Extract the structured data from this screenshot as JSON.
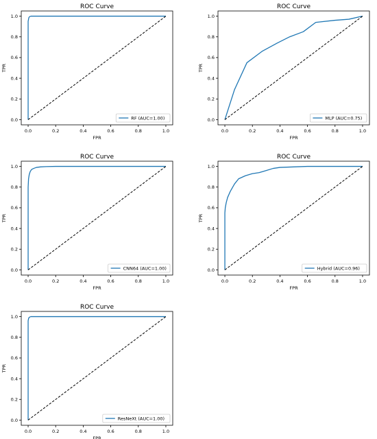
{
  "colors": {
    "roc": "#1f77b4",
    "diagonal": "#000000",
    "axes": "#000000",
    "legend_border": "#cccccc"
  },
  "chart_data": [
    {
      "type": "line",
      "title": "ROC Curve",
      "xlabel": "FPR",
      "ylabel": "TPR",
      "xlim": [
        -0.05,
        1.05
      ],
      "ylim": [
        -0.05,
        1.05
      ],
      "xticks": [
        "0.0",
        "0.2",
        "0.4",
        "0.6",
        "0.8",
        "1.0"
      ],
      "yticks": [
        "0.0",
        "0.2",
        "0.4",
        "0.6",
        "0.8",
        "1.0"
      ],
      "grid": false,
      "legend_position": "lower-right",
      "series": [
        {
          "name": "RF (AUC=1.00)",
          "style": "solid",
          "x": [
            0.0,
            0.0,
            0.005,
            0.01,
            0.02,
            0.05,
            0.2,
            0.5,
            1.0
          ],
          "y": [
            0.0,
            0.95,
            0.985,
            0.995,
            1.0,
            1.0,
            1.0,
            1.0,
            1.0
          ]
        },
        {
          "style": "dashed",
          "x": [
            0,
            1
          ],
          "y": [
            0,
            1
          ]
        }
      ]
    },
    {
      "type": "line",
      "title": "ROC Curve",
      "xlabel": "FPR",
      "ylabel": "TPR",
      "xlim": [
        -0.05,
        1.05
      ],
      "ylim": [
        -0.05,
        1.05
      ],
      "xticks": [
        "0.0",
        "0.2",
        "0.4",
        "0.6",
        "0.8",
        "1.0"
      ],
      "yticks": [
        "0.0",
        "0.2",
        "0.4",
        "0.6",
        "0.8",
        "1.0"
      ],
      "grid": false,
      "legend_position": "lower-right",
      "series": [
        {
          "name": "MLP (AUC=0.75)",
          "style": "solid",
          "x": [
            0.0,
            0.07,
            0.16,
            0.27,
            0.38,
            0.47,
            0.57,
            0.66,
            0.8,
            0.9,
            1.0
          ],
          "y": [
            0.0,
            0.29,
            0.55,
            0.66,
            0.74,
            0.8,
            0.85,
            0.94,
            0.96,
            0.97,
            1.0
          ]
        },
        {
          "style": "dashed",
          "x": [
            0,
            1
          ],
          "y": [
            0,
            1
          ]
        }
      ]
    },
    {
      "type": "line",
      "title": "ROC Curve",
      "xlabel": "FPR",
      "ylabel": "TPR",
      "xlim": [
        -0.05,
        1.05
      ],
      "ylim": [
        -0.05,
        1.05
      ],
      "xticks": [
        "0.0",
        "0.2",
        "0.4",
        "0.6",
        "0.8",
        "1.0"
      ],
      "yticks": [
        "0.0",
        "0.2",
        "0.4",
        "0.6",
        "0.8",
        "1.0"
      ],
      "grid": false,
      "legend_position": "lower-right",
      "series": [
        {
          "name": "CNN64 (AUC=1.00)",
          "style": "solid",
          "x": [
            0.0,
            0.0,
            0.003,
            0.008,
            0.015,
            0.025,
            0.04,
            0.06,
            0.09,
            0.13,
            0.2,
            0.35,
            0.6,
            1.0
          ],
          "y": [
            0.0,
            0.8,
            0.88,
            0.92,
            0.95,
            0.97,
            0.98,
            0.99,
            0.995,
            0.998,
            1.0,
            1.0,
            1.0,
            1.0
          ]
        },
        {
          "style": "dashed",
          "x": [
            0,
            1
          ],
          "y": [
            0,
            1
          ]
        }
      ]
    },
    {
      "type": "line",
      "title": "ROC Curve",
      "xlabel": "FPR",
      "ylabel": "TPR",
      "xlim": [
        -0.05,
        1.05
      ],
      "ylim": [
        -0.05,
        1.05
      ],
      "xticks": [
        "0.0",
        "0.2",
        "0.4",
        "0.6",
        "0.8",
        "1.0"
      ],
      "yticks": [
        "0.0",
        "0.2",
        "0.4",
        "0.6",
        "0.8",
        "1.0"
      ],
      "grid": false,
      "legend_position": "lower-right",
      "series": [
        {
          "name": "Hybrid (AUC=0.96)",
          "style": "solid",
          "x": [
            0.0,
            0.0,
            0.003,
            0.01,
            0.02,
            0.04,
            0.07,
            0.1,
            0.15,
            0.2,
            0.25,
            0.3,
            0.35,
            0.4,
            0.5,
            0.6,
            0.7,
            0.8,
            0.9,
            1.0
          ],
          "y": [
            0.0,
            0.55,
            0.6,
            0.65,
            0.7,
            0.76,
            0.83,
            0.88,
            0.91,
            0.93,
            0.94,
            0.96,
            0.98,
            0.99,
            0.995,
            1.0,
            1.0,
            1.0,
            1.0,
            1.0
          ]
        },
        {
          "style": "dashed",
          "x": [
            0,
            1
          ],
          "y": [
            0,
            1
          ]
        }
      ]
    },
    {
      "type": "line",
      "title": "ROC Curve",
      "xlabel": "FPR",
      "ylabel": "TPR",
      "xlim": [
        -0.05,
        1.05
      ],
      "ylim": [
        -0.05,
        1.05
      ],
      "xticks": [
        "0.0",
        "0.2",
        "0.4",
        "0.6",
        "0.8",
        "1.0"
      ],
      "yticks": [
        "0.0",
        "0.2",
        "0.4",
        "0.6",
        "0.8",
        "1.0"
      ],
      "grid": false,
      "legend_position": "lower-right",
      "series": [
        {
          "name": "ResNeXt (AUC=1.00)",
          "style": "solid",
          "x": [
            0.0,
            0.0,
            0.004,
            0.01,
            0.02,
            0.05,
            0.2,
            0.5,
            1.0
          ],
          "y": [
            0.0,
            0.96,
            0.985,
            0.995,
            1.0,
            1.0,
            1.0,
            1.0,
            1.0
          ]
        },
        {
          "style": "dashed",
          "x": [
            0,
            1
          ],
          "y": [
            0,
            1
          ]
        }
      ]
    }
  ]
}
